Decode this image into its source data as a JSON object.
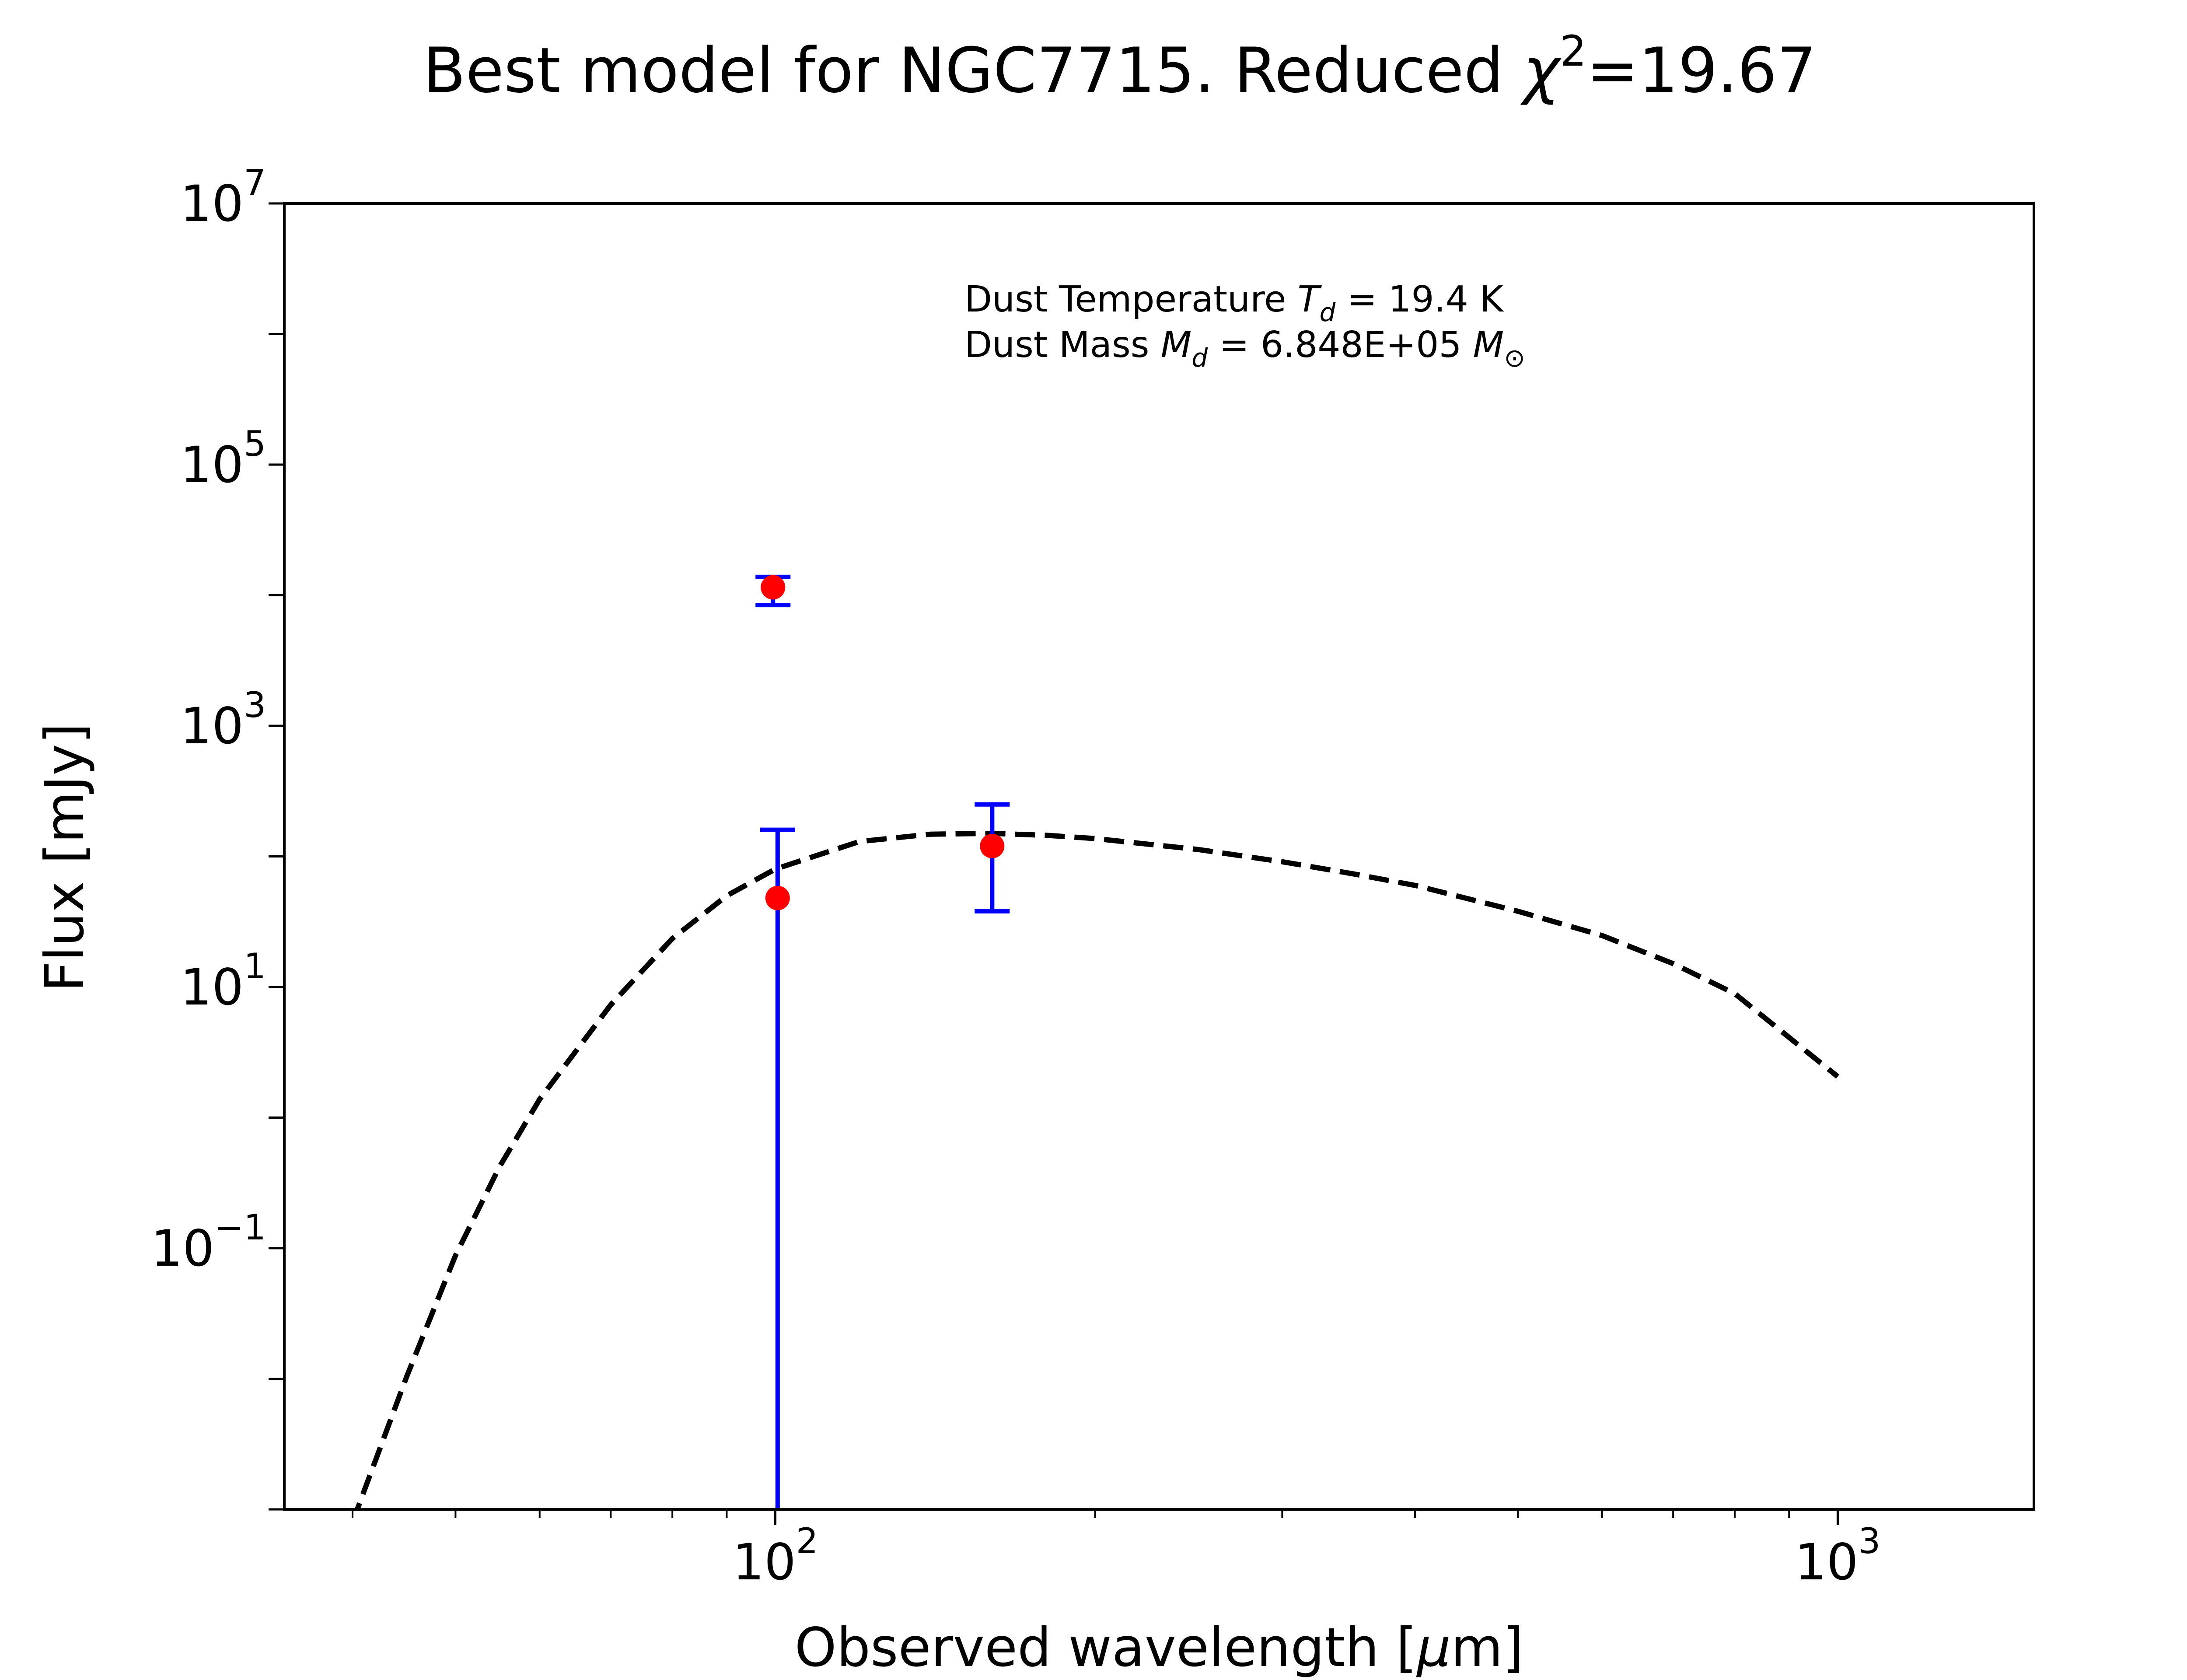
{
  "chart_data": {
    "type": "scatter",
    "title": {
      "prefix": "Best model for NGC7715. Reduced ",
      "chi_symbol": "χ",
      "chi_exp": "2",
      "suffix": "=19.67"
    },
    "xlabel": {
      "prefix": "Observed wavelength [",
      "mu": "μ",
      "suffix": "m]"
    },
    "ylabel": "Flux [mJy]",
    "x_scale": "log",
    "y_scale": "log",
    "xlim": [
      34.5,
      1530
    ],
    "ylim": [
      0.001,
      10000000
    ],
    "grid": false,
    "x_ticks": [
      {
        "value": 100,
        "base": "10",
        "exp": "2"
      },
      {
        "value": 1000,
        "base": "10",
        "exp": "3"
      }
    ],
    "y_ticks": [
      {
        "value": 0.1,
        "base": "10",
        "exp": "−1"
      },
      {
        "value": 10,
        "base": "10",
        "exp": "1"
      },
      {
        "value": 1000,
        "base": "10",
        "exp": "3"
      },
      {
        "value": 100000,
        "base": "10",
        "exp": "5"
      },
      {
        "value": 10000000,
        "base": "10",
        "exp": "7"
      }
    ],
    "annotations": {
      "temperature": {
        "prefix": "Dust Temperature ",
        "sym": "T",
        "sub": "d",
        "value": " = 19.4 K"
      },
      "mass": {
        "prefix": "Dust Mass ",
        "sym": "M",
        "sub": "d",
        "value": " = 6.848E+05 ",
        "unit_sym": "M",
        "unit_sub": "⊙"
      }
    },
    "model_curve": {
      "style": "dashed",
      "color": "#000000",
      "x": [
        40,
        45,
        50,
        55,
        60,
        70,
        80,
        90,
        100,
        120,
        140,
        160,
        180,
        200,
        250,
        300,
        350,
        400,
        500,
        600,
        700,
        800,
        1000
      ],
      "y": [
        0.0008,
        0.0105,
        0.088,
        0.42,
        1.38,
        7.3,
        23.5,
        50,
        80,
        130,
        148,
        150,
        145,
        137,
        113,
        91,
        73.5,
        60,
        38,
        24.8,
        15.1,
        8.9,
        2.06
      ]
    },
    "points": [
      {
        "x": 99.5,
        "y": 11500,
        "err_low": 8400,
        "err_high": 13800
      },
      {
        "x": 100.5,
        "y": 48,
        "err_low": 0.001,
        "err_high": 160
      },
      {
        "x": 160,
        "y": 120,
        "err_low": 38,
        "err_high": 250
      }
    ],
    "point_color": "#ff0000",
    "errorbar_color": "#0000ff"
  }
}
